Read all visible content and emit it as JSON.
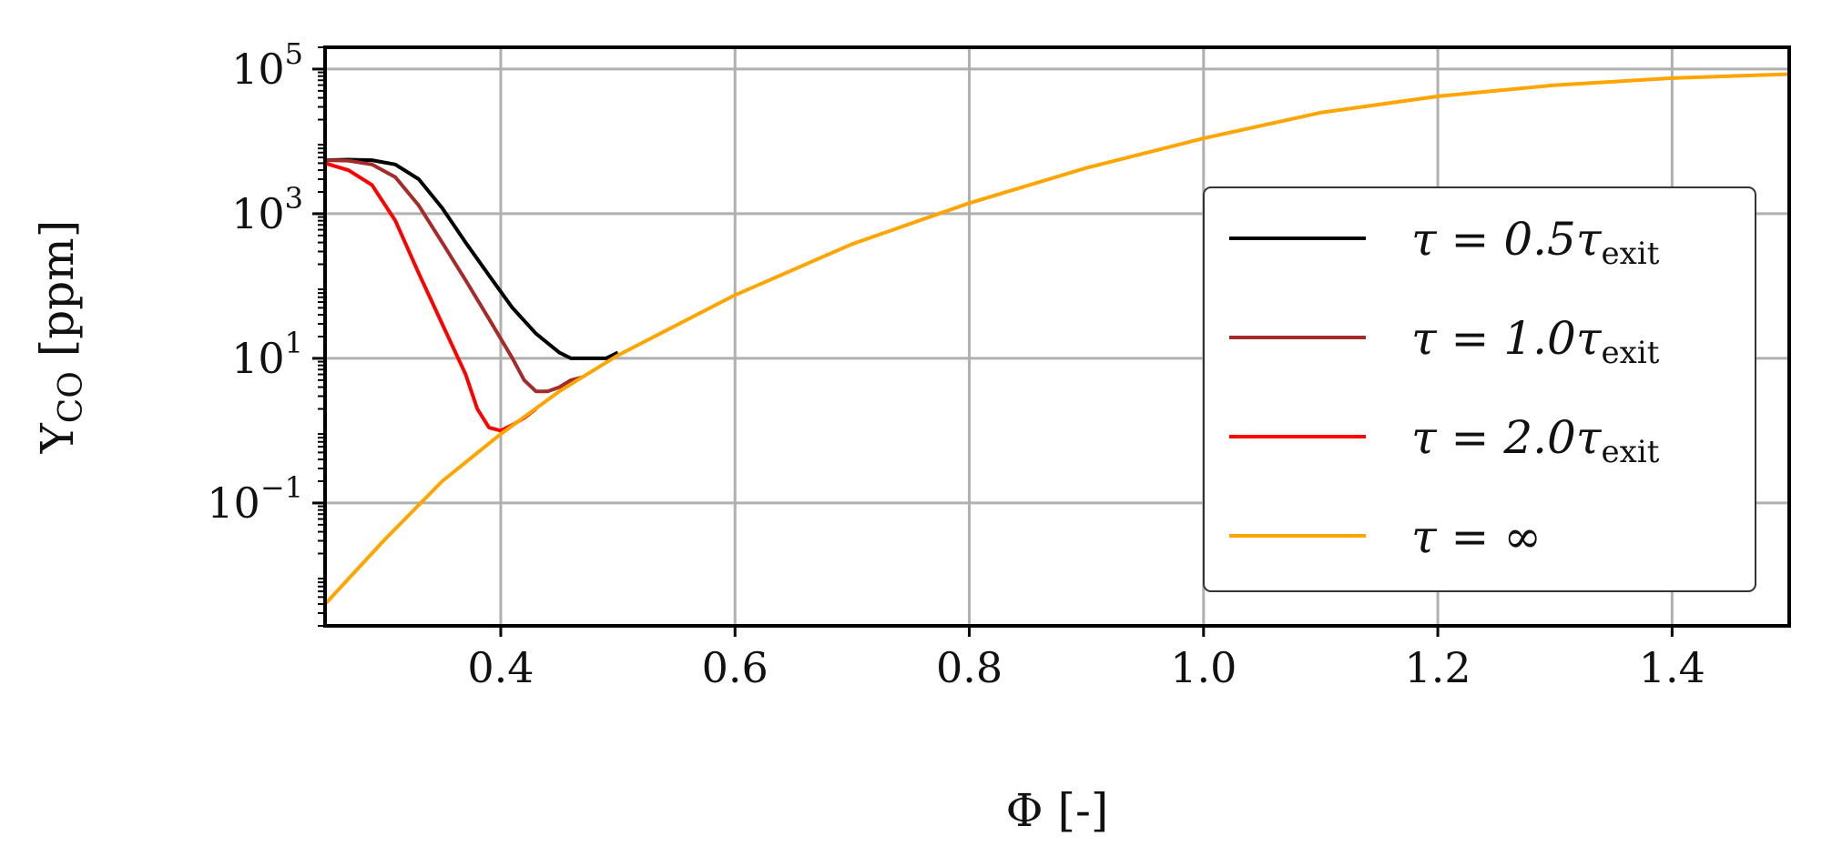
{
  "chart_data": {
    "type": "line",
    "xlabel": "Φ [-]",
    "ylabel": "Y",
    "ylabel_sub": "CO",
    "ylabel_unit": " [ppm]",
    "xlim": [
      0.25,
      1.5
    ],
    "ylim": [
      0.002,
      200000
    ],
    "yscale": "log",
    "grid": true,
    "legend_position": "right",
    "x_ticks": [
      {
        "value": 0.4,
        "label": "0.4"
      },
      {
        "value": 0.6,
        "label": "0.6"
      },
      {
        "value": 0.8,
        "label": "0.8"
      },
      {
        "value": 1.0,
        "label": "1.0"
      },
      {
        "value": 1.2,
        "label": "1.2"
      },
      {
        "value": 1.4,
        "label": "1.4"
      }
    ],
    "y_ticks": [
      {
        "value": 0.1,
        "base": "10",
        "exp": "−1"
      },
      {
        "value": 10,
        "base": "10",
        "exp": "1"
      },
      {
        "value": 1000,
        "base": "10",
        "exp": "3"
      },
      {
        "value": 100000,
        "base": "10",
        "exp": "5"
      }
    ],
    "series": [
      {
        "name": "τ = 0.5τ",
        "name_sub": "exit",
        "color": "#000000",
        "x": [
          0.25,
          0.27,
          0.29,
          0.31,
          0.33,
          0.35,
          0.37,
          0.39,
          0.41,
          0.43,
          0.45,
          0.46,
          0.47,
          0.48,
          0.49,
          0.5
        ],
        "y": [
          5500,
          5600,
          5500,
          4800,
          3000,
          1200,
          400,
          140,
          50,
          22,
          12,
          10,
          10,
          10,
          10,
          12
        ]
      },
      {
        "name": "τ = 1.0τ",
        "name_sub": "exit",
        "color": "#A52A2A",
        "x": [
          0.25,
          0.27,
          0.29,
          0.31,
          0.33,
          0.35,
          0.37,
          0.39,
          0.41,
          0.42,
          0.43,
          0.44,
          0.45,
          0.46,
          0.47
        ],
        "y": [
          5500,
          5400,
          4800,
          3200,
          1300,
          400,
          120,
          35,
          10,
          5,
          3.5,
          3.5,
          4,
          5,
          5.5
        ]
      },
      {
        "name": "τ = 2.0τ",
        "name_sub": "exit",
        "color": "#FF0000",
        "x": [
          0.25,
          0.27,
          0.29,
          0.31,
          0.33,
          0.35,
          0.37,
          0.38,
          0.39,
          0.4,
          0.41,
          0.42,
          0.43
        ],
        "y": [
          5000,
          4000,
          2500,
          800,
          150,
          30,
          6,
          2,
          1.1,
          1,
          1.2,
          1.5,
          2
        ]
      },
      {
        "name": "τ = ∞",
        "name_sub": "",
        "color": "#FFA500",
        "x": [
          0.25,
          0.3,
          0.35,
          0.4,
          0.45,
          0.5,
          0.6,
          0.7,
          0.8,
          0.9,
          1.0,
          1.1,
          1.2,
          1.3,
          1.4,
          1.5
        ],
        "y": [
          0.004,
          0.03,
          0.2,
          0.9,
          3.5,
          11,
          75,
          380,
          1400,
          4300,
          11000,
          25000,
          42000,
          60000,
          75000,
          85000
        ]
      }
    ]
  }
}
